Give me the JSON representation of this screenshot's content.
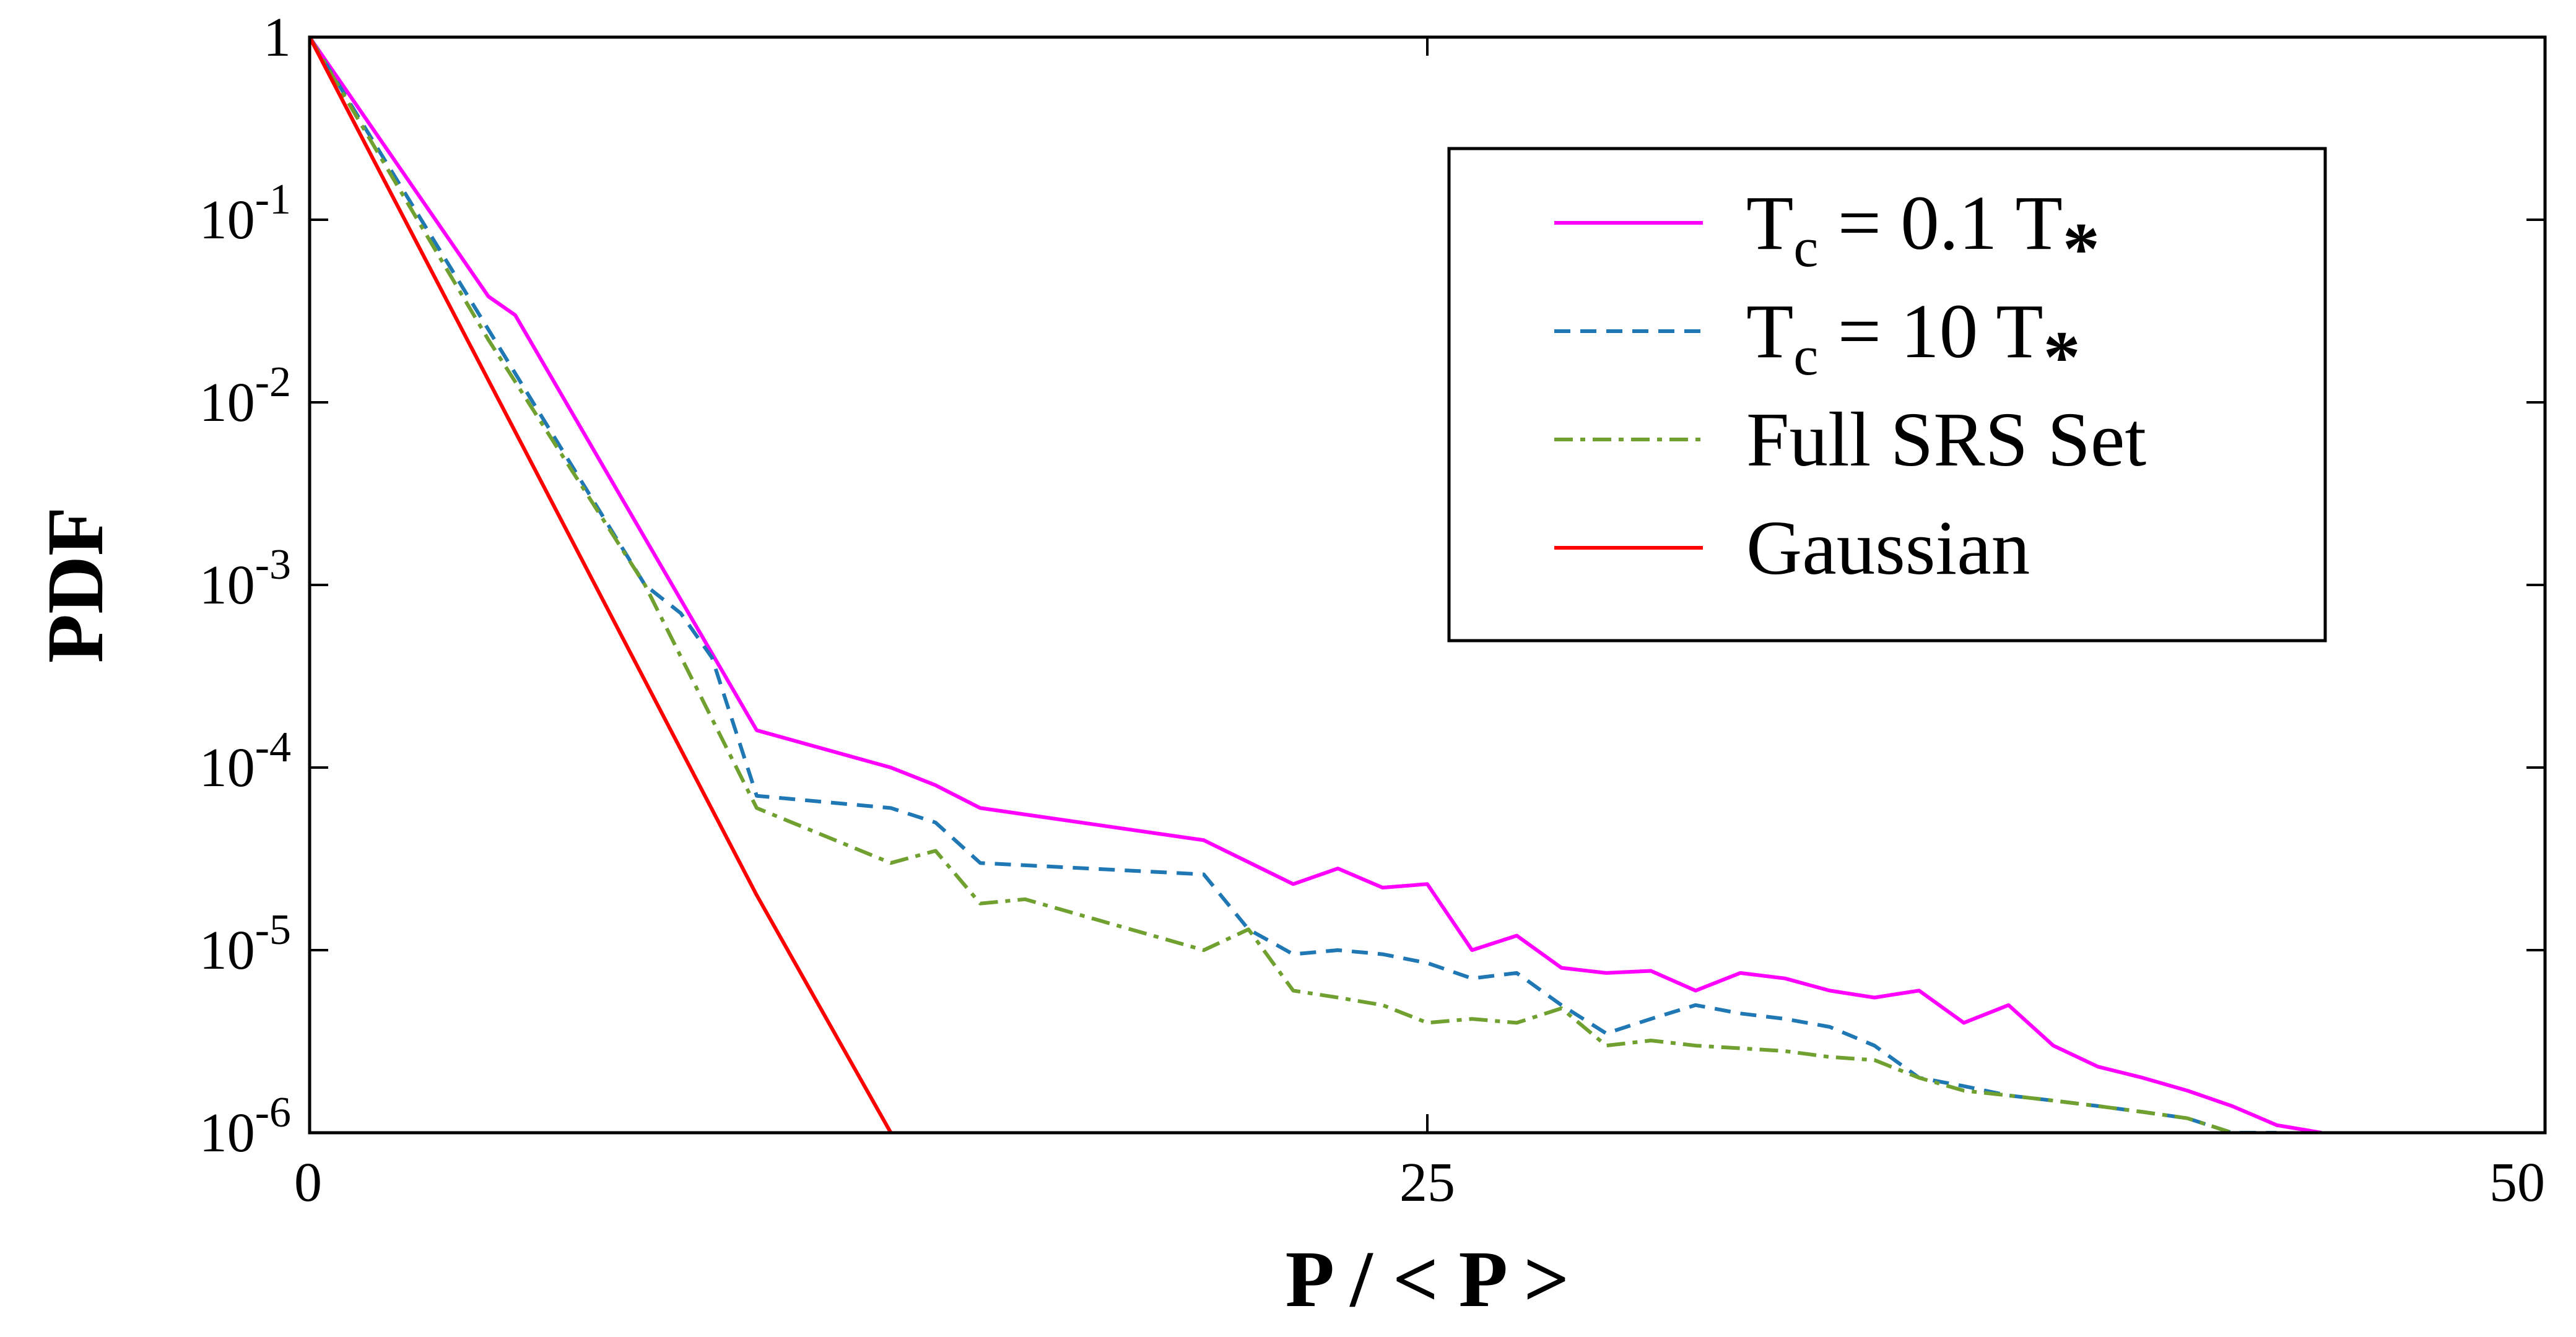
{
  "chart_data": {
    "type": "line",
    "title": "",
    "xlabel": "P / < P >",
    "ylabel": "PDF",
    "xlim": [
      0,
      50
    ],
    "ylim": [
      1e-06,
      1
    ],
    "yscale": "log",
    "grid": false,
    "legend_position": "top-right",
    "x_ticks": [
      "0",
      "25",
      "50"
    ],
    "y_ticks": [
      {
        "base": "1",
        "exp": ""
      },
      {
        "base": "10",
        "exp": "-1"
      },
      {
        "base": "10",
        "exp": "-2"
      },
      {
        "base": "10",
        "exp": "-3"
      },
      {
        "base": "10",
        "exp": "-4"
      },
      {
        "base": "10",
        "exp": "-5"
      },
      {
        "base": "10",
        "exp": "-6"
      }
    ],
    "series": [
      {
        "name": "T_c = 0.1 T_*",
        "legend": {
          "main": "T",
          "sub": "c",
          "rest": " = 0.1 T",
          "star": "*"
        },
        "color": "#ff00ff",
        "style": "solid",
        "x": [
          0,
          4,
          4.6,
          10,
          13,
          14,
          15,
          20,
          22,
          23,
          24,
          25,
          26,
          27,
          28,
          29,
          30,
          31,
          32,
          33,
          34,
          35,
          36,
          37,
          38,
          39,
          40,
          41,
          42,
          43,
          44,
          45
        ],
        "y": [
          1,
          0.038,
          0.03,
          0.00016,
          0.0001,
          8e-05,
          6e-05,
          4e-05,
          2.3e-05,
          2.8e-05,
          2.2e-05,
          2.3e-05,
          1e-05,
          1.2e-05,
          8e-06,
          7.5e-06,
          7.7e-06,
          6e-06,
          7.5e-06,
          7e-06,
          6e-06,
          5.5e-06,
          6e-06,
          4e-06,
          5e-06,
          3e-06,
          2.3e-06,
          2e-06,
          1.7e-06,
          1.4e-06,
          1.1e-06,
          1e-06
        ]
      },
      {
        "name": "T_c = 10 T_*",
        "legend": {
          "main": "T",
          "sub": "c",
          "rest": " = 10 T",
          "star": "*"
        },
        "color": "#1f77b4",
        "style": "dashed",
        "x": [
          0,
          4,
          7.5,
          8.3,
          9,
          10,
          13,
          14,
          15,
          20,
          21,
          22,
          23,
          24,
          25,
          26,
          27,
          28,
          29,
          30,
          31,
          32,
          33,
          34,
          35,
          36,
          37,
          38,
          39,
          40,
          41,
          42,
          43,
          44
        ],
        "y": [
          1,
          0.025,
          0.001,
          0.0007,
          0.0004,
          7e-05,
          6e-05,
          5e-05,
          3e-05,
          2.6e-05,
          1.3e-05,
          9.5e-06,
          1e-05,
          9.5e-06,
          8.5e-06,
          7e-06,
          7.5e-06,
          5e-06,
          3.5e-06,
          4.2e-06,
          5e-06,
          4.5e-06,
          4.2e-06,
          3.8e-06,
          3e-06,
          2e-06,
          1.8e-06,
          1.6e-06,
          1.5e-06,
          1.4e-06,
          1.3e-06,
          1.2e-06,
          1e-06,
          1e-06
        ]
      },
      {
        "name": "Full SRS Set",
        "legend": {
          "main": "Full SRS Set",
          "sub": "",
          "rest": "",
          "star": ""
        },
        "color": "#6fa030",
        "style": "dashdot",
        "x": [
          0,
          4,
          7.5,
          10,
          13,
          14,
          15,
          16,
          20,
          21,
          22,
          23,
          24,
          25,
          26,
          27,
          28,
          29,
          30,
          31,
          32,
          33,
          34,
          35,
          36,
          37,
          38,
          39,
          40,
          41,
          42,
          43
        ],
        "y": [
          1,
          0.022,
          0.001,
          6e-05,
          3e-05,
          3.5e-05,
          1.8e-05,
          1.9e-05,
          1e-05,
          1.3e-05,
          6e-06,
          5.5e-06,
          5e-06,
          4e-06,
          4.2e-06,
          4e-06,
          4.8e-06,
          3e-06,
          3.2e-06,
          3e-06,
          2.9e-06,
          2.8e-06,
          2.6e-06,
          2.5e-06,
          2e-06,
          1.7e-06,
          1.6e-06,
          1.5e-06,
          1.4e-06,
          1.3e-06,
          1.2e-06,
          1e-06
        ]
      },
      {
        "name": "Gaussian",
        "legend": {
          "main": "Gaussian",
          "sub": "",
          "rest": "",
          "star": ""
        },
        "color": "#ff0000",
        "style": "solid",
        "x": [
          0,
          10,
          13
        ],
        "y": [
          1,
          2e-05,
          1e-06
        ]
      }
    ]
  }
}
